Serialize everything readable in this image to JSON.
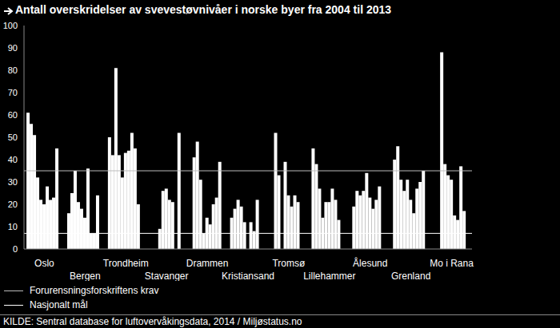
{
  "chart_data": {
    "type": "bar",
    "title": "Antall overskridelser av svevestøvnivåer i norske byer fra 2004 til 2013",
    "source": "KILDE: Sentral database for luftovervåkingsdata, 2014 / Miljøstatus.no",
    "categories": [
      "Oslo",
      "Bergen",
      "Trondheim",
      "Stavanger",
      "Drammen",
      "Kristiansand",
      "Tromsø",
      "Lillehammer",
      "Ålesund",
      "Grenland",
      "Mo i Rana"
    ],
    "series": [
      {
        "color": "#ffffff",
        "values": [
          61,
          16,
          50,
          null,
          null,
          14,
          null,
          45,
          19,
          40,
          null
        ]
      },
      {
        "color": "#ffffff",
        "values": [
          56,
          25,
          42,
          null,
          41,
          18,
          52,
          38,
          26,
          46,
          null
        ]
      },
      {
        "color": "#ffffff",
        "values": [
          51,
          35,
          81,
          null,
          48,
          22,
          33,
          27,
          24,
          31,
          88
        ]
      },
      {
        "color": "#ffffff",
        "values": [
          32,
          21,
          42,
          9,
          31,
          19,
          null,
          14,
          26,
          26,
          38
        ]
      },
      {
        "color": "#ffffff",
        "values": [
          22,
          18,
          32,
          26,
          7,
          12,
          39,
          21,
          34,
          31,
          33
        ]
      },
      {
        "color": "#ffffff",
        "values": [
          20,
          14,
          43,
          27,
          14,
          null,
          24,
          21,
          23,
          22,
          31
        ]
      },
      {
        "color": "#ffffff",
        "values": [
          28,
          36,
          44,
          22,
          11,
          12,
          19,
          27,
          18,
          16,
          15
        ]
      },
      {
        "color": "#ffffff",
        "values": [
          22,
          7,
          52,
          21,
          20,
          8,
          24,
          22,
          22,
          27,
          13
        ]
      },
      {
        "color": "#ffffff",
        "values": [
          23,
          7,
          45,
          null,
          23,
          22,
          21,
          13,
          28,
          30,
          37
        ]
      },
      {
        "color": "#ffffff",
        "values": [
          45,
          24,
          20,
          52,
          39,
          null,
          null,
          null,
          null,
          35,
          17
        ]
      }
    ],
    "reference_lines": [
      {
        "label": "Forurensningsforskriftens krav",
        "value": 35,
        "color": "#bbbbbb"
      },
      {
        "label": "Nasjonalt mål",
        "value": 7,
        "color": "#ffffff"
      }
    ],
    "ylim": [
      0,
      100
    ],
    "yticks": [
      0,
      10,
      20,
      30,
      40,
      50,
      60,
      70,
      80,
      90,
      100
    ],
    "grid": false
  }
}
